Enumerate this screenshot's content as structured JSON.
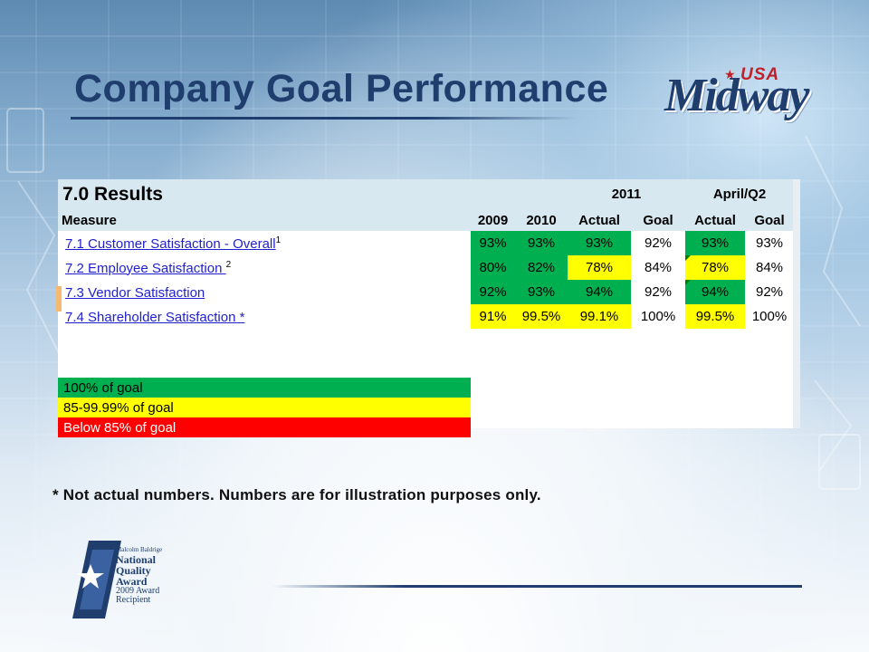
{
  "slide": {
    "title": "Company Goal Performance",
    "footnote": "* Not actual numbers. Numbers are for illustration purposes only."
  },
  "logo": {
    "main": "Midway",
    "usa": "USA"
  },
  "table": {
    "section_title": "7.0 Results",
    "group_2011": "2011",
    "group_aprq2": "April/Q2",
    "headers": [
      "Measure",
      "2009",
      "2010",
      "Actual",
      "Goal",
      "Actual",
      "Goal"
    ],
    "rows": [
      {
        "measure": "7.1 Customer Satisfaction - Overall",
        "sup": "1",
        "v2009": "93%",
        "v2010": "93%",
        "actual2011": "93%",
        "goal2011": "92%",
        "actualQ2": "93%",
        "goalQ2": "93%"
      },
      {
        "measure": "7.2 Employee Satisfaction ",
        "sup": "2",
        "v2009": "80%",
        "v2010": "82%",
        "actual2011": "78%",
        "goal2011": "84%",
        "actualQ2": "78%",
        "goalQ2": "84%"
      },
      {
        "measure": "7.3 Vendor Satisfaction",
        "sup": "",
        "v2009": "92%",
        "v2010": "93%",
        "actual2011": "94%",
        "goal2011": "92%",
        "actualQ2": "94%",
        "goalQ2": "92%"
      },
      {
        "measure": "7.4 Shareholder Satisfaction *",
        "sup": "",
        "v2009": "91%",
        "v2010": "99.5%",
        "actual2011": "99.1%",
        "goal2011": "100%",
        "actualQ2": "99.5%",
        "goalQ2": "100%"
      }
    ],
    "colors": {
      "green": "#00b050",
      "yellow": "#ffff00",
      "red": "#ff0000"
    },
    "legend": [
      "100% of goal",
      "85-99.99% of goal",
      "Below 85% of goal"
    ]
  },
  "award": {
    "lines": [
      "Malcolm Baldrige",
      "National",
      "Quality",
      "Award",
      "2009 Award",
      "Recipient"
    ]
  }
}
